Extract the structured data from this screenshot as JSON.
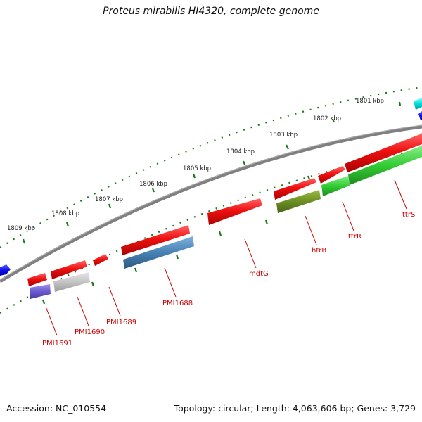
{
  "title": "Proteus mirabilis HI4320, complete genome",
  "footer": {
    "accession": "Accession: NC_010554",
    "summary": "Topology: circular; Length: 4,063,606 bp; Genes: 3,729"
  },
  "ticks": [
    "1801 kbp",
    "1802 kbp",
    "1803 kbp",
    "1804 kbp",
    "1805 kbp",
    "1806 kbp",
    "1807 kbp",
    "1808 kbp",
    "1809 kbp"
  ],
  "genes": [
    {
      "name": "ttrS",
      "color": "#ee1111",
      "strand": "forward"
    },
    {
      "name": "ttrR",
      "color": "#ee1111",
      "strand": "forward"
    },
    {
      "name": "htrB",
      "color": "#ee1111",
      "strand": "forward"
    },
    {
      "name": "mdtG",
      "color": "#ee1111",
      "strand": "forward"
    },
    {
      "name": "PMI1688",
      "color": "#ee1111",
      "strand": "forward"
    },
    {
      "name": "PMI1689",
      "color": "#ee1111",
      "strand": "forward"
    },
    {
      "name": "PMI1690",
      "color": "#ee1111",
      "strand": "forward"
    },
    {
      "name": "PMI1691",
      "color": "#ee1111",
      "strand": "forward"
    }
  ],
  "feature_colors": {
    "backbone": "#808080",
    "tick": "#1a7a1a",
    "cds": "#ee1111",
    "green_feature": "#33cc33",
    "olive_feature": "#6b8e23",
    "steelblue_feature": "#4682b4",
    "purple_feature": "#6a5acd",
    "grey_feature": "#c0c0c0",
    "blue_feature": "#1111ee",
    "cyan_feature": "#00dddd"
  }
}
